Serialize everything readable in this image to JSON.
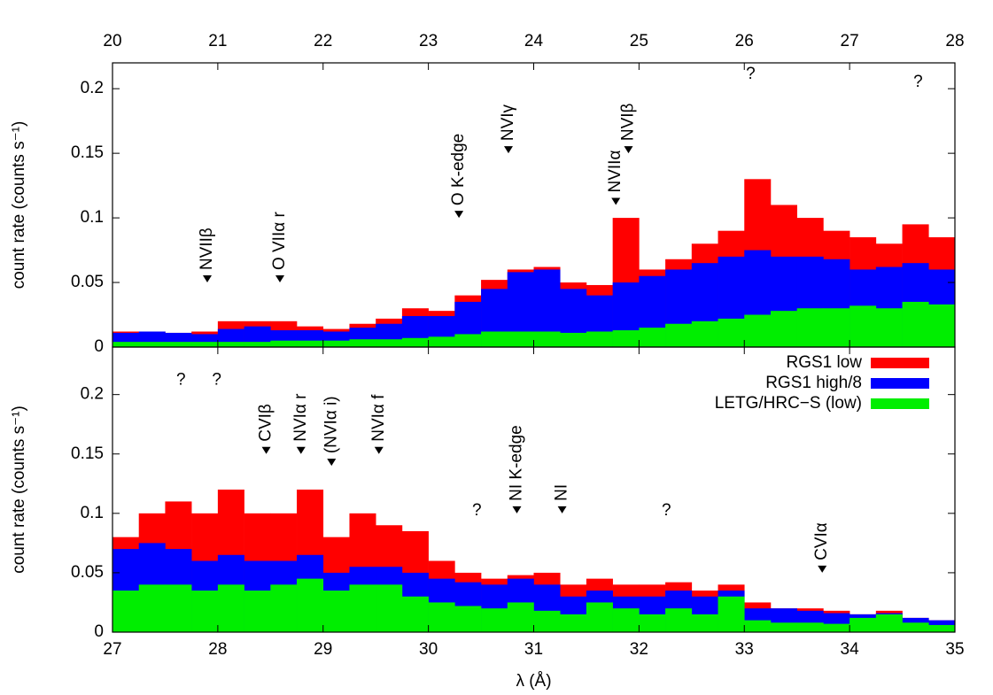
{
  "chart_data": [
    {
      "type": "histogram",
      "ylabel": "count rate (counts s⁻¹)",
      "xaxis_position": "top",
      "xlim": [
        20,
        28
      ],
      "xticks": [
        20,
        21,
        22,
        23,
        24,
        25,
        26,
        27,
        28
      ],
      "ylim": [
        0,
        0.22
      ],
      "yticks": [
        0,
        0.05,
        0.1,
        0.15,
        0.2
      ],
      "bins": [
        20,
        20.25,
        20.5,
        20.75,
        21,
        21.25,
        21.5,
        21.75,
        22,
        22.25,
        22.5,
        22.75,
        23,
        23.25,
        23.5,
        23.75,
        24,
        24.25,
        24.5,
        24.75,
        25,
        25.25,
        25.5,
        25.75,
        26,
        26.25,
        26.5,
        26.75,
        27,
        27.25,
        27.5,
        27.75,
        28
      ],
      "series": [
        {
          "color": "#ff0000",
          "values": [
            0.012,
            0.012,
            0.011,
            0.012,
            0.02,
            0.02,
            0.02,
            0.016,
            0.014,
            0.018,
            0.022,
            0.03,
            0.028,
            0.04,
            0.052,
            0.06,
            0.062,
            0.05,
            0.048,
            0.1,
            0.06,
            0.068,
            0.08,
            0.09,
            0.13,
            0.11,
            0.1,
            0.09,
            0.085,
            0.08,
            0.095,
            0.085
          ]
        },
        {
          "color": "#0000ff",
          "values": [
            0.011,
            0.012,
            0.011,
            0.01,
            0.014,
            0.016,
            0.013,
            0.013,
            0.012,
            0.015,
            0.018,
            0.024,
            0.024,
            0.035,
            0.045,
            0.058,
            0.06,
            0.045,
            0.04,
            0.05,
            0.055,
            0.06,
            0.065,
            0.07,
            0.075,
            0.07,
            0.07,
            0.068,
            0.06,
            0.062,
            0.065,
            0.06
          ]
        },
        {
          "color": "#00ee00",
          "values": [
            0.004,
            0.004,
            0.004,
            0.004,
            0.004,
            0.004,
            0.005,
            0.005,
            0.005,
            0.006,
            0.006,
            0.007,
            0.008,
            0.01,
            0.012,
            0.012,
            0.012,
            0.011,
            0.012,
            0.013,
            0.015,
            0.018,
            0.02,
            0.022,
            0.025,
            0.028,
            0.03,
            0.03,
            0.032,
            0.03,
            0.035,
            0.033
          ]
        }
      ],
      "annotations": [
        {
          "text": "NVIIβ",
          "x": 20.9,
          "y": 0.05
        },
        {
          "text": "O VIIα r",
          "x": 21.59,
          "y": 0.05
        },
        {
          "text": "O K-edge",
          "x": 23.29,
          "y": 0.1
        },
        {
          "text": "NVIγ",
          "x": 23.76,
          "y": 0.15
        },
        {
          "text": "NVIIα",
          "x": 24.78,
          "y": 0.11
        },
        {
          "text": "NVIβ",
          "x": 24.9,
          "y": 0.15
        }
      ],
      "notes": [
        {
          "text": "?",
          "x": 26.06,
          "y": 0.211
        },
        {
          "text": "?",
          "x": 27.65,
          "y": 0.205
        }
      ]
    },
    {
      "type": "histogram",
      "ylabel": "count rate (counts s⁻¹)",
      "xlabel": "λ (Å)",
      "xaxis_position": "bottom",
      "legend": "top-right",
      "xlim": [
        27,
        35
      ],
      "xticks": [
        27,
        28,
        29,
        30,
        31,
        32,
        33,
        34,
        35
      ],
      "ylim": [
        0,
        0.24
      ],
      "yticks": [
        0,
        0.05,
        0.1,
        0.15,
        0.2
      ],
      "bins": [
        27,
        27.25,
        27.5,
        27.75,
        28,
        28.25,
        28.5,
        28.75,
        29,
        29.25,
        29.5,
        29.75,
        30,
        30.25,
        30.5,
        30.75,
        31,
        31.25,
        31.5,
        31.75,
        32,
        32.25,
        32.5,
        32.75,
        33,
        33.25,
        33.5,
        33.75,
        34,
        34.25,
        34.5,
        34.75,
        35
      ],
      "series": [
        {
          "name": "RGS1 low",
          "color": "#ff0000",
          "values": [
            0.08,
            0.1,
            0.11,
            0.1,
            0.12,
            0.1,
            0.1,
            0.12,
            0.08,
            0.1,
            0.09,
            0.085,
            0.06,
            0.05,
            0.045,
            0.048,
            0.05,
            0.04,
            0.045,
            0.04,
            0.04,
            0.042,
            0.035,
            0.04,
            0.025,
            0.02,
            0.02,
            0.018,
            0.015,
            0.018,
            0.012,
            0.01
          ]
        },
        {
          "name": "RGS1 high/8",
          "color": "#0000ff",
          "values": [
            0.07,
            0.075,
            0.07,
            0.06,
            0.065,
            0.06,
            0.06,
            0.065,
            0.05,
            0.055,
            0.055,
            0.05,
            0.045,
            0.042,
            0.04,
            0.045,
            0.04,
            0.03,
            0.035,
            0.03,
            0.03,
            0.035,
            0.03,
            0.035,
            0.02,
            0.02,
            0.018,
            0.016,
            0.015,
            0.016,
            0.012,
            0.01
          ]
        },
        {
          "name": "LETG/HRC−S (low)",
          "color": "#00ee00",
          "values": [
            0.035,
            0.04,
            0.04,
            0.035,
            0.04,
            0.035,
            0.04,
            0.045,
            0.035,
            0.04,
            0.04,
            0.03,
            0.025,
            0.022,
            0.02,
            0.025,
            0.018,
            0.015,
            0.025,
            0.02,
            0.015,
            0.02,
            0.015,
            0.03,
            0.01,
            0.008,
            0.008,
            0.007,
            0.012,
            0.015,
            0.008,
            0.006
          ]
        }
      ],
      "annotations": [
        {
          "text": "CVIβ",
          "x": 28.46,
          "y": 0.15
        },
        {
          "text": "NVIα r",
          "x": 28.79,
          "y": 0.15
        },
        {
          "text": "(NVIα i)",
          "x": 29.08,
          "y": 0.14
        },
        {
          "text": "NVIα f",
          "x": 29.53,
          "y": 0.15
        },
        {
          "text": "NI K-edge",
          "x": 30.84,
          "y": 0.1
        },
        {
          "text": "NI",
          "x": 31.27,
          "y": 0.1
        },
        {
          "text": "CVIα",
          "x": 33.74,
          "y": 0.05
        }
      ],
      "notes": [
        {
          "text": "?",
          "x": 27.65,
          "y": 0.212
        },
        {
          "text": "?",
          "x": 27.99,
          "y": 0.212
        },
        {
          "text": "?",
          "x": 30.46,
          "y": 0.102
        },
        {
          "text": "?",
          "x": 32.26,
          "y": 0.102
        }
      ]
    }
  ]
}
